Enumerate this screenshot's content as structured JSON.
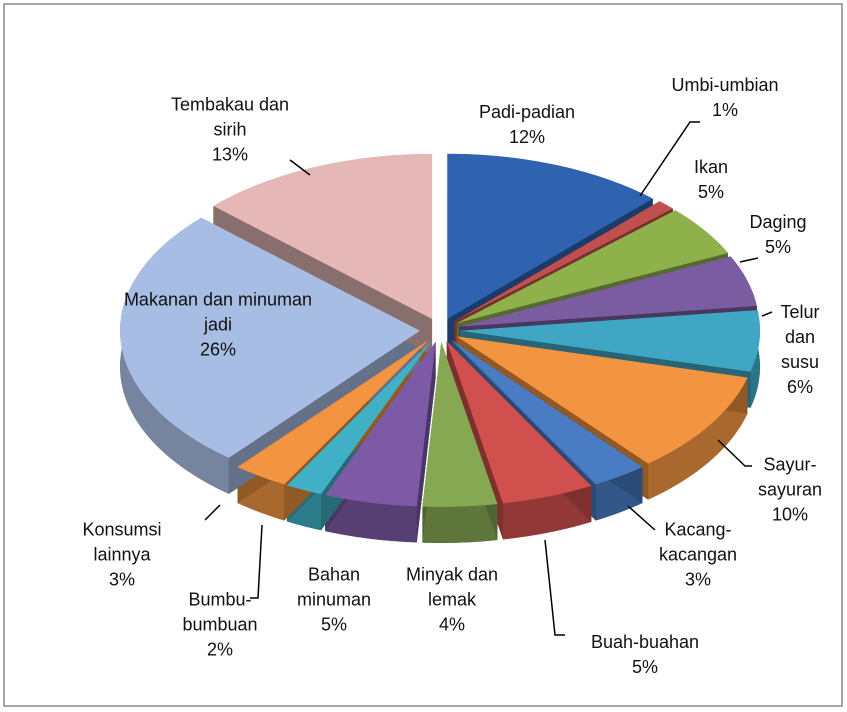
{
  "chart_data": {
    "type": "pie3d",
    "categories": [
      "Padi-padian",
      "Umbi-umbian",
      "Ikan",
      "Daging",
      "Telur dan susu",
      "Sayur-sayuran",
      "Kacang-kacangan",
      "Buah-buahan",
      "Minyak dan lemak",
      "Bahan minuman",
      "Bumbu-bumbuan",
      "Konsumsi lainnya",
      "Makanan dan minuman jadi",
      "Tembakau dan sirih"
    ],
    "values": [
      12,
      1,
      5,
      5,
      6,
      10,
      3,
      5,
      4,
      5,
      2,
      3,
      26,
      13
    ],
    "value_labels": [
      "12%",
      "1%",
      "5%",
      "5%",
      "6%",
      "10%",
      "3%",
      "5%",
      "4%",
      "5%",
      "2%",
      "3%",
      "26%",
      "13%"
    ],
    "colors": [
      "#2f63b0",
      "#c0504d",
      "#8fb14b",
      "#7a5ca0",
      "#3fa7c4",
      "#f29440",
      "#4a7cc4",
      "#d0504d",
      "#86a852",
      "#7c5aa6",
      "#3fb0c6",
      "#f29440",
      "#a8bde3",
      "#e5b8b7"
    ]
  }
}
